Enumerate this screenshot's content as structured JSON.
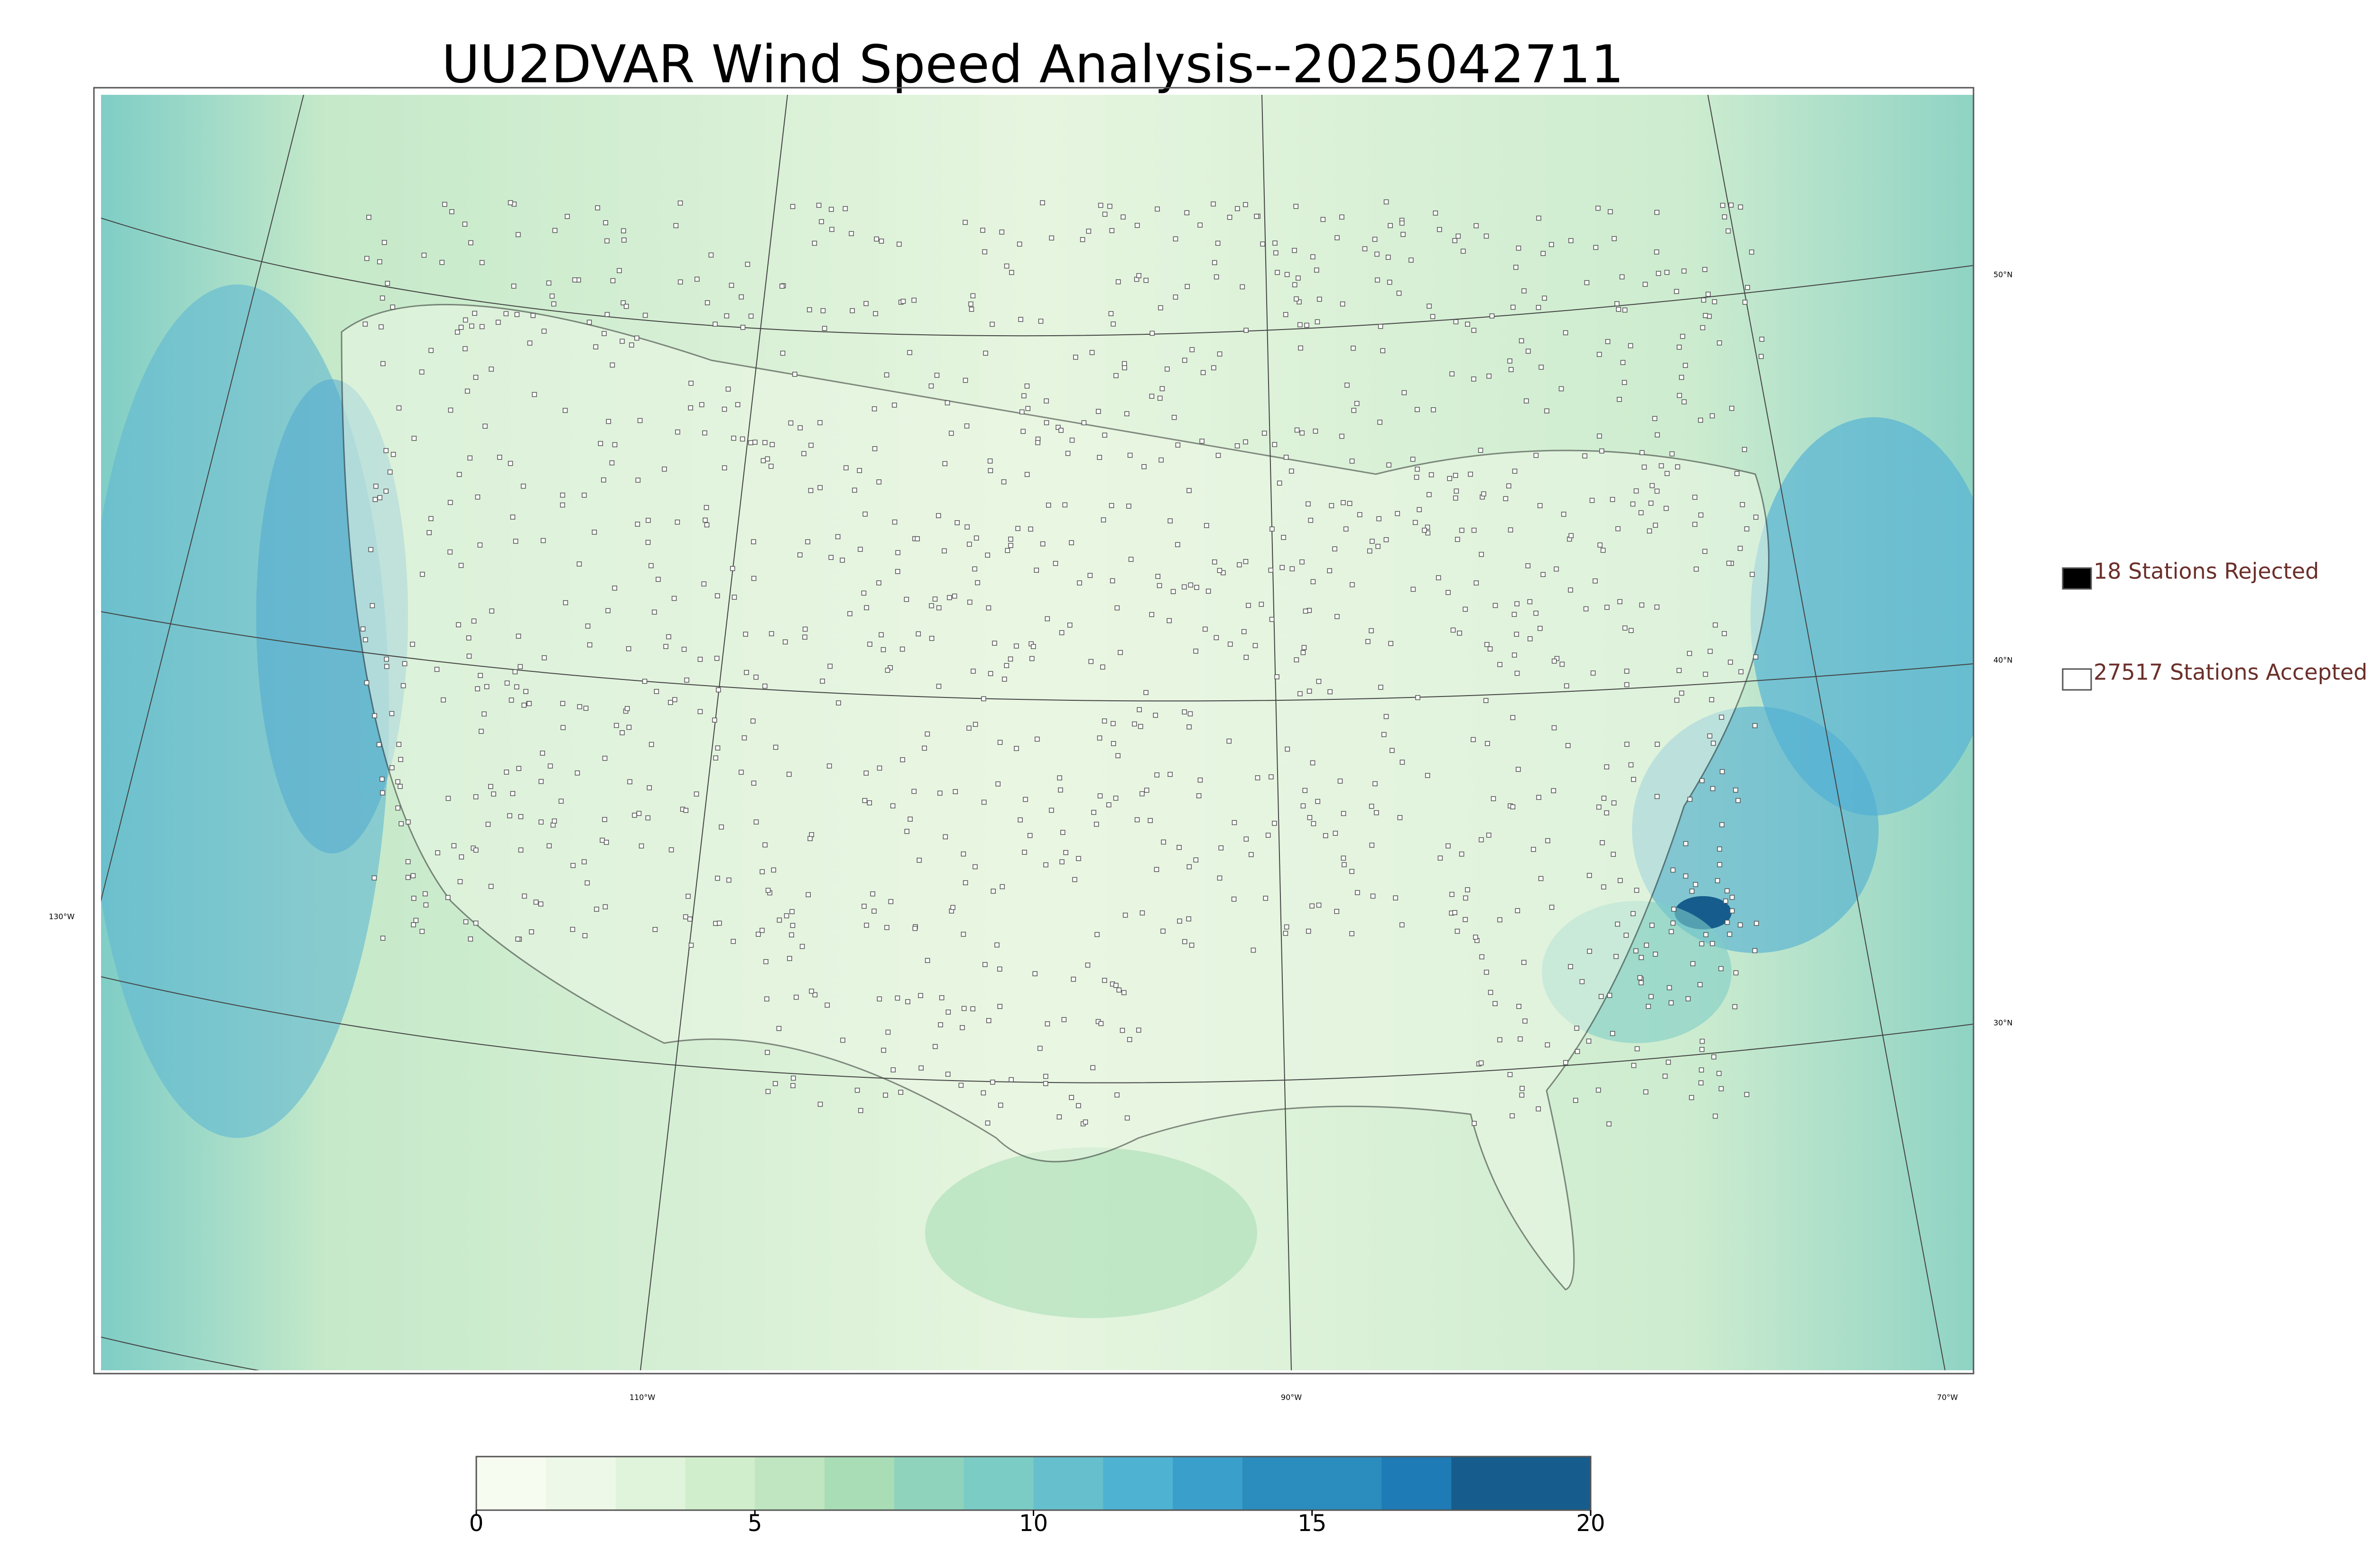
{
  "header": {
    "title": "UU2DVAR Wind Speed Analysis--2025042711"
  },
  "legend": [
    {
      "label": "18 Stations Rejected",
      "color": "#000000"
    },
    {
      "label": "27517 Stations Accepted",
      "color": "#ffffff"
    }
  ],
  "latitude_labels": [
    "50°N",
    "40°N",
    "30°N"
  ],
  "longitude_labels": [
    "130°W",
    "110°W",
    "90°W",
    "70°W"
  ],
  "colorbar": {
    "range": [
      0,
      20
    ],
    "ticks": [
      0,
      5,
      10,
      15,
      20
    ],
    "colors": [
      "#f7fcf0",
      "#eef8e8",
      "#e0f3db",
      "#d0eecb",
      "#bfe6c0",
      "#a8ddb5",
      "#8fd3bd",
      "#7bccc4",
      "#66bfcd",
      "#4eb3d3",
      "#3a9fcb",
      "#2b8cbe",
      "#2b8cbe",
      "#1f7bb5",
      "#165d8e",
      "#165d8e"
    ]
  }
}
